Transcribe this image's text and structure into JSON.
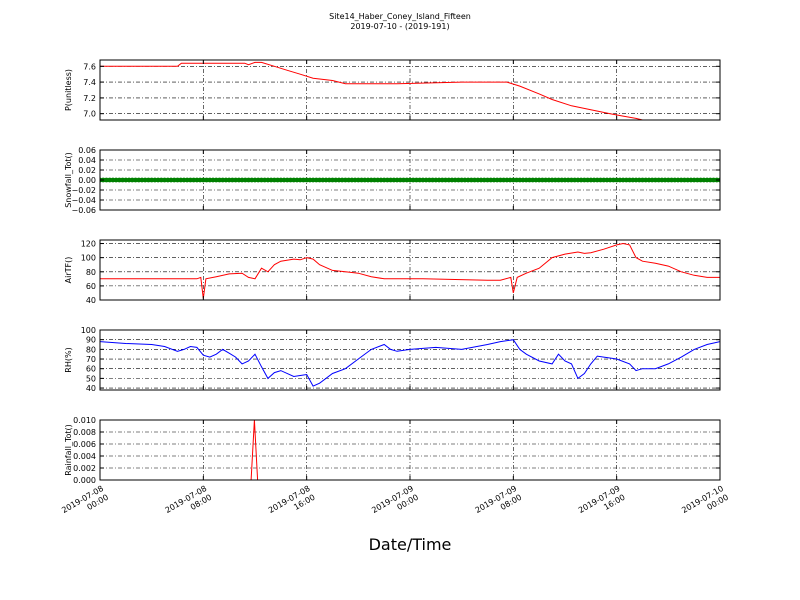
{
  "title_line1": "Site14_Haber_Coney_Island_Fifteen",
  "title_line2": "2019-07-10 - (2019-191)",
  "xlabel": "Date/Time",
  "x_ticks": [
    {
      "line1": "2019-07-08",
      "line2": "00:00"
    },
    {
      "line1": "2019-07-08",
      "line2": "08:00"
    },
    {
      "line1": "2019-07-08",
      "line2": "16:00"
    },
    {
      "line1": "2019-07-09",
      "line2": "00:00"
    },
    {
      "line1": "2019-07-09",
      "line2": "08:00"
    },
    {
      "line1": "2019-07-09",
      "line2": "16:00"
    },
    {
      "line1": "2019-07-10",
      "line2": "00:00"
    }
  ],
  "chart_data": [
    {
      "type": "line",
      "ylabel": "P(unitless)",
      "color": "#ff0000",
      "ylim": [
        6.92,
        7.68
      ],
      "yticks": [
        7.0,
        7.2,
        7.4,
        7.6
      ],
      "ytick_labels": [
        "7.0",
        "7.2",
        "7.4",
        "7.6"
      ],
      "grid": true,
      "x_hours": [
        0,
        6,
        6.3,
        11.2,
        11.5,
        12,
        12.5,
        13.5,
        14.5,
        15.5,
        16.5,
        18,
        19,
        23,
        28,
        31.5,
        32.5,
        34,
        35,
        36.5,
        38,
        39.5,
        40.5,
        41.5,
        42,
        48
      ],
      "series": [
        {
          "values": [
            7.6,
            7.6,
            7.64,
            7.64,
            7.62,
            7.65,
            7.65,
            7.6,
            7.55,
            7.5,
            7.45,
            7.42,
            7.38,
            7.38,
            7.4,
            7.4,
            7.35,
            7.25,
            7.18,
            7.1,
            7.05,
            7.0,
            6.97,
            6.94,
            6.92,
            6.92
          ]
        }
      ]
    },
    {
      "type": "scatter",
      "ylabel": "Snowfall_Tot()",
      "color": "#008000",
      "ylim": [
        -0.06,
        0.06
      ],
      "yticks": [
        -0.06,
        -0.04,
        -0.02,
        0.0,
        0.02,
        0.04,
        0.06
      ],
      "ytick_labels": [
        "−0.06",
        "−0.04",
        "−0.02",
        "0.00",
        "0.02",
        "0.04",
        "0.06"
      ],
      "grid": true,
      "x_range_hours": [
        0,
        48
      ],
      "x_step_hours": 0.25,
      "constant_value": 0.0
    },
    {
      "type": "line",
      "ylabel": "AirTF()",
      "color": "#ff0000",
      "ylim": [
        40,
        125
      ],
      "yticks": [
        40,
        60,
        80,
        100,
        120
      ],
      "ytick_labels": [
        "40",
        "60",
        "80",
        "100",
        "120"
      ],
      "grid": true,
      "x_hours": [
        0,
        7.5,
        7.8,
        8.0,
        8.2,
        9,
        10,
        11,
        11.5,
        12,
        12.5,
        13,
        13.5,
        14,
        15,
        15.5,
        16,
        16.5,
        17,
        18,
        19,
        20,
        21,
        22,
        25,
        30,
        31,
        31.8,
        32.0,
        32.3,
        33,
        34,
        35,
        36,
        37,
        37.5,
        38,
        39,
        40,
        40.5,
        41,
        41.5,
        42,
        43,
        44,
        45,
        46,
        47,
        48
      ],
      "series": [
        {
          "values": [
            70,
            70,
            72,
            42,
            70,
            73,
            77,
            78,
            72,
            70,
            85,
            80,
            90,
            95,
            98,
            97,
            100,
            98,
            90,
            82,
            80,
            78,
            73,
            70,
            70,
            68,
            68,
            72,
            50,
            72,
            78,
            85,
            100,
            105,
            108,
            106,
            107,
            112,
            118,
            120,
            118,
            100,
            95,
            92,
            88,
            80,
            75,
            72,
            72
          ]
        }
      ]
    },
    {
      "type": "line",
      "ylabel": "RH(%)",
      "color": "#0000ff",
      "ylim": [
        38,
        100
      ],
      "yticks": [
        40,
        50,
        60,
        70,
        80,
        90,
        100
      ],
      "ytick_labels": [
        "40",
        "50",
        "60",
        "70",
        "80",
        "90",
        "100"
      ],
      "grid": true,
      "x_hours": [
        0,
        2,
        4,
        5,
        6,
        6.5,
        7,
        7.5,
        8,
        8.5,
        9,
        9.5,
        10,
        10.5,
        11,
        11.5,
        12,
        12.5,
        13,
        13.5,
        14,
        15,
        15.5,
        16,
        16.5,
        17,
        18,
        19,
        20,
        21,
        22,
        22.5,
        23,
        24,
        26,
        28,
        30,
        31,
        32,
        32.5,
        33,
        34,
        35,
        35.5,
        36,
        36.5,
        37,
        37.5,
        38,
        38.5,
        39,
        40,
        41,
        41.5,
        42,
        43,
        44,
        45,
        46,
        47,
        48
      ],
      "series": [
        {
          "values": [
            88,
            86,
            85,
            83,
            78,
            80,
            83,
            82,
            74,
            72,
            75,
            80,
            76,
            72,
            65,
            68,
            75,
            62,
            50,
            56,
            58,
            52,
            53,
            54,
            42,
            45,
            55,
            60,
            70,
            80,
            85,
            80,
            78,
            80,
            82,
            80,
            85,
            88,
            90,
            80,
            75,
            68,
            65,
            75,
            68,
            65,
            50,
            55,
            65,
            73,
            72,
            70,
            65,
            58,
            60,
            60,
            65,
            72,
            80,
            85,
            88
          ]
        }
      ]
    },
    {
      "type": "line",
      "ylabel": "Rainfall_Tot()",
      "color": "#ff0000",
      "ylim": [
        0,
        0.01
      ],
      "yticks": [
        0,
        0.002,
        0.004,
        0.006,
        0.008,
        0.01
      ],
      "ytick_labels": [
        "0.000",
        "0.002",
        "0.004",
        "0.006",
        "0.008",
        "0.010"
      ],
      "grid": true,
      "x_hours": [
        0,
        11.7,
        11.95,
        12.2,
        48
      ],
      "series": [
        {
          "values": [
            0,
            0,
            0.01,
            0,
            0
          ]
        }
      ]
    }
  ]
}
